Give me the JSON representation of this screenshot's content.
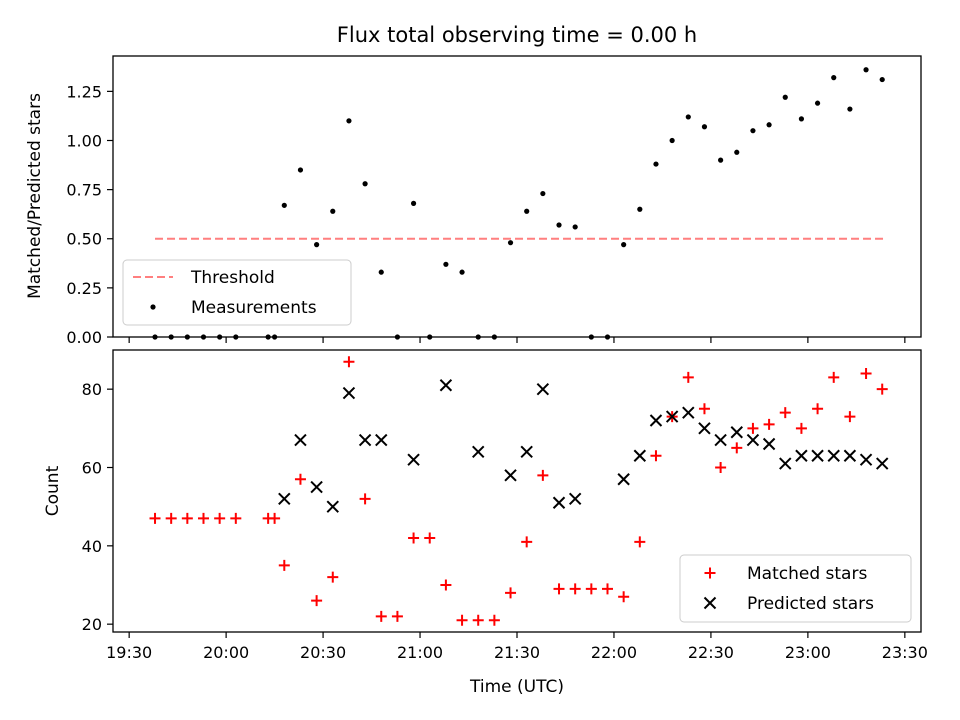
{
  "figure": {
    "title": "Flux total observing time = 0.00 h"
  },
  "chart_data": [
    {
      "type": "scatter",
      "panel": "top",
      "title": "Flux total observing time = 0.00 h",
      "xlabel": "",
      "ylabel": "Matched/Predicted stars",
      "xlim": [
        "19:25",
        "23:35"
      ],
      "ylim": [
        0,
        1.43
      ],
      "xtick_labels": [
        "19:30",
        "20:00",
        "20:30",
        "21:00",
        "21:30",
        "22:00",
        "22:30",
        "23:00",
        "23:30"
      ],
      "ytick_values": [
        0.0,
        0.25,
        0.5,
        0.75,
        1.0,
        1.25
      ],
      "ytick_labels": [
        "0.00",
        "0.25",
        "0.50",
        "0.75",
        "1.00",
        "1.25"
      ],
      "grid": false,
      "legend": {
        "placement": "lower-left",
        "entries": [
          "Threshold",
          "Measurements"
        ]
      },
      "threshold": {
        "name": "Threshold",
        "value": 0.5,
        "x_range": [
          "19:38",
          "23:24"
        ],
        "color": "#ff7f7f",
        "style": "dashed"
      },
      "series": [
        {
          "name": "Measurements",
          "color": "#000000",
          "marker": "dot",
          "x": [
            "19:38",
            "19:43",
            "19:48",
            "19:53",
            "19:58",
            "20:03",
            "20:13",
            "20:15",
            "20:18",
            "20:23",
            "20:28",
            "20:33",
            "20:38",
            "20:43",
            "20:48",
            "20:53",
            "20:58",
            "21:03",
            "21:08",
            "21:13",
            "21:18",
            "21:23",
            "21:28",
            "21:33",
            "21:38",
            "21:43",
            "21:48",
            "21:53",
            "21:58",
            "22:03",
            "22:08",
            "22:13",
            "22:18",
            "22:23",
            "22:28",
            "22:33",
            "22:38",
            "22:43",
            "22:48",
            "22:53",
            "22:58",
            "23:03",
            "23:08",
            "23:13",
            "23:18",
            "23:23"
          ],
          "y": [
            0,
            0,
            0,
            0,
            0,
            0,
            0,
            0,
            0.67,
            0.85,
            0.47,
            0.64,
            1.1,
            0.78,
            0.33,
            0,
            0.68,
            0,
            0.37,
            0.33,
            0,
            0,
            0.48,
            0.64,
            0.73,
            0.57,
            0.56,
            0,
            0,
            0.47,
            0.65,
            0.88,
            1.0,
            1.12,
            1.07,
            0.9,
            0.94,
            1.05,
            1.08,
            1.22,
            1.11,
            1.19,
            1.32,
            1.16,
            1.36,
            1.31
          ]
        }
      ]
    },
    {
      "type": "scatter",
      "panel": "bottom",
      "title": "",
      "xlabel": "Time (UTC)",
      "ylabel": "Count",
      "xlim": [
        "19:25",
        "23:35"
      ],
      "ylim": [
        18,
        90
      ],
      "xtick_labels": [
        "19:30",
        "20:00",
        "20:30",
        "21:00",
        "21:30",
        "22:00",
        "22:30",
        "23:00",
        "23:30"
      ],
      "ytick_values": [
        20,
        40,
        60,
        80
      ],
      "ytick_labels": [
        "20",
        "40",
        "60",
        "80"
      ],
      "grid": false,
      "legend": {
        "placement": "lower-right",
        "entries": [
          "Matched stars",
          "Predicted stars"
        ]
      },
      "series": [
        {
          "name": "Matched stars",
          "color": "#ff0000",
          "marker": "plus",
          "x": [
            "19:38",
            "19:43",
            "19:48",
            "19:53",
            "19:58",
            "20:03",
            "20:13",
            "20:15",
            "20:18",
            "20:23",
            "20:28",
            "20:33",
            "20:38",
            "20:43",
            "20:48",
            "20:53",
            "20:58",
            "21:03",
            "21:08",
            "21:13",
            "21:18",
            "21:23",
            "21:28",
            "21:33",
            "21:38",
            "21:43",
            "21:48",
            "21:53",
            "21:58",
            "22:03",
            "22:08",
            "22:13",
            "22:18",
            "22:23",
            "22:28",
            "22:33",
            "22:38",
            "22:43",
            "22:48",
            "22:53",
            "22:58",
            "23:03",
            "23:08",
            "23:13",
            "23:18",
            "23:23"
          ],
          "y": [
            47,
            47,
            47,
            47,
            47,
            47,
            47,
            47,
            35,
            57,
            26,
            32,
            87,
            52,
            22,
            22,
            42,
            42,
            30,
            21,
            21,
            21,
            28,
            41,
            58,
            29,
            29,
            29,
            29,
            27,
            41,
            63,
            73,
            83,
            75,
            60,
            65,
            70,
            71,
            74,
            70,
            75,
            83,
            73,
            84,
            80
          ]
        },
        {
          "name": "Predicted stars",
          "color": "#000000",
          "marker": "x",
          "x": [
            "20:18",
            "20:23",
            "20:28",
            "20:33",
            "20:38",
            "20:43",
            "20:48",
            "20:58",
            "21:08",
            "21:18",
            "21:28",
            "21:33",
            "21:38",
            "21:43",
            "21:48",
            "22:03",
            "22:08",
            "22:13",
            "22:18",
            "22:23",
            "22:28",
            "22:33",
            "22:38",
            "22:43",
            "22:48",
            "22:53",
            "22:58",
            "23:03",
            "23:08",
            "23:13",
            "23:18",
            "23:23"
          ],
          "y": [
            52,
            67,
            55,
            50,
            79,
            67,
            67,
            62,
            81,
            64,
            58,
            64,
            80,
            51,
            52,
            57,
            63,
            72,
            73,
            74,
            70,
            67,
            69,
            67,
            66,
            61,
            63,
            63,
            63,
            63,
            62,
            61
          ]
        }
      ]
    }
  ]
}
